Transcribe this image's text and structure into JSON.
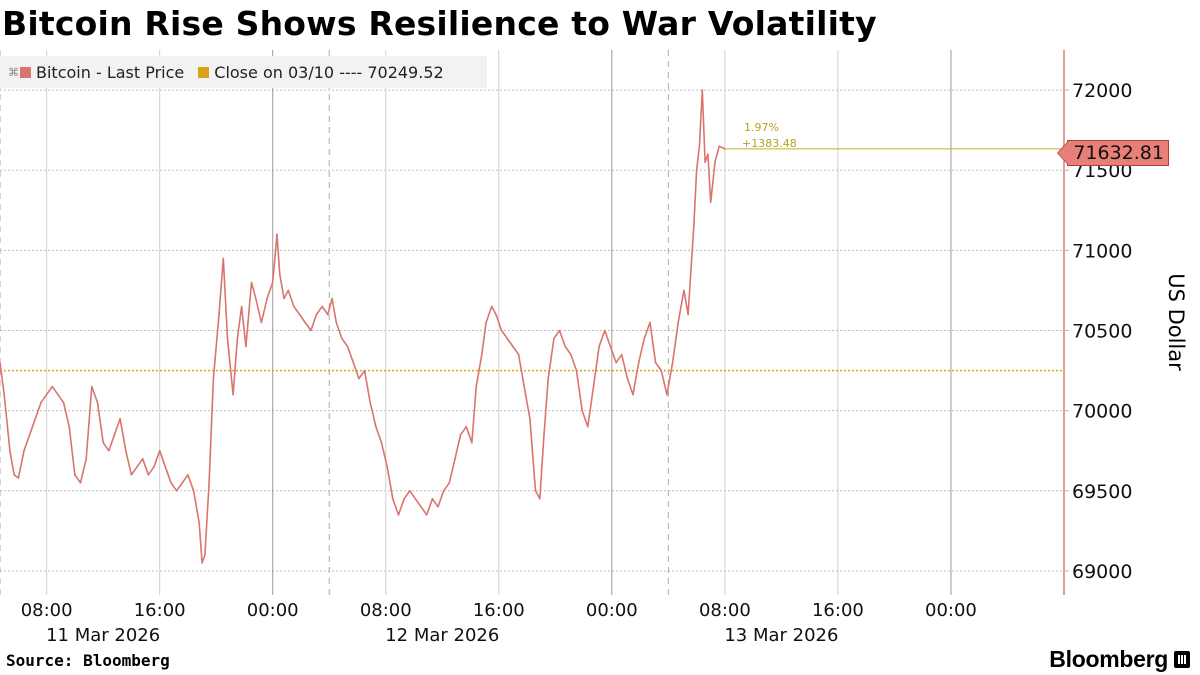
{
  "title": "Bitcoin Rise Shows Resilience to War Volatility",
  "source": "Source: Bloomberg",
  "brand": "Bloomberg",
  "colors": {
    "series": "#d9756d",
    "close_line": "#d9a21b",
    "grid": "#bdbdbd",
    "tag_fill": "#e8807a"
  },
  "legend": [
    {
      "label": "Bitcoin - Last Price",
      "color": "#d9756d"
    },
    {
      "label": "Close on 03/10 ---- 70249.52",
      "color": "#d9a21b"
    }
  ],
  "last_price_tag": "71632.81",
  "annotation": {
    "pct": "1.97%",
    "abs": "+1383.48"
  },
  "chart_data": {
    "type": "line",
    "ylabel": "US Dollar",
    "ylim": [
      68850,
      72250
    ],
    "y_ticks": [
      69000,
      69500,
      70000,
      70500,
      71000,
      71500,
      72000
    ],
    "y_tick_labels": [
      "69000",
      "69500",
      "70000",
      "70500",
      "71000",
      "71500",
      "72000"
    ],
    "x_ticks": [
      {
        "hour": 8,
        "label": "08:00"
      },
      {
        "hour": 16,
        "label": "16:00"
      },
      {
        "hour": 24,
        "label": "00:00"
      },
      {
        "hour": 32,
        "label": "08:00"
      },
      {
        "hour": 40,
        "label": "16:00"
      },
      {
        "hour": 48,
        "label": "00:00"
      },
      {
        "hour": 56,
        "label": "08:00"
      },
      {
        "hour": 64,
        "label": "16:00"
      },
      {
        "hour": 72,
        "label": "00:00"
      }
    ],
    "date_labels": [
      {
        "hour": 12,
        "label": "11 Mar 2026"
      },
      {
        "hour": 36,
        "label": "12 Mar 2026"
      },
      {
        "hour": 60,
        "label": "13 Mar 2026"
      }
    ],
    "xlim_hours": [
      4.7,
      80
    ],
    "close_reference": {
      "label": "Close on 03/10",
      "value": 70249.52
    },
    "last_price": 71632.81,
    "change_pct": 1.97,
    "change_abs": 1383.48,
    "series": [
      {
        "name": "Bitcoin - Last Price",
        "points": [
          [
            4.7,
            70300
          ],
          [
            5.0,
            70100
          ],
          [
            5.4,
            69750
          ],
          [
            5.7,
            69600
          ],
          [
            6.0,
            69580
          ],
          [
            6.4,
            69750
          ],
          [
            6.8,
            69850
          ],
          [
            7.2,
            69950
          ],
          [
            7.6,
            70050
          ],
          [
            8.0,
            70100
          ],
          [
            8.4,
            70150
          ],
          [
            8.8,
            70100
          ],
          [
            9.2,
            70050
          ],
          [
            9.6,
            69900
          ],
          [
            10.0,
            69600
          ],
          [
            10.4,
            69550
          ],
          [
            10.8,
            69700
          ],
          [
            11.2,
            70150
          ],
          [
            11.6,
            70050
          ],
          [
            12.0,
            69800
          ],
          [
            12.4,
            69750
          ],
          [
            12.8,
            69850
          ],
          [
            13.2,
            69950
          ],
          [
            13.6,
            69750
          ],
          [
            14.0,
            69600
          ],
          [
            14.4,
            69650
          ],
          [
            14.8,
            69700
          ],
          [
            15.2,
            69600
          ],
          [
            15.6,
            69650
          ],
          [
            16.0,
            69750
          ],
          [
            16.4,
            69650
          ],
          [
            16.8,
            69550
          ],
          [
            17.2,
            69500
          ],
          [
            17.6,
            69550
          ],
          [
            18.0,
            69600
          ],
          [
            18.4,
            69500
          ],
          [
            18.8,
            69300
          ],
          [
            19.0,
            69050
          ],
          [
            19.2,
            69100
          ],
          [
            19.5,
            69550
          ],
          [
            19.8,
            70200
          ],
          [
            20.2,
            70600
          ],
          [
            20.5,
            70950
          ],
          [
            20.8,
            70450
          ],
          [
            21.2,
            70100
          ],
          [
            21.5,
            70450
          ],
          [
            21.8,
            70650
          ],
          [
            22.1,
            70400
          ],
          [
            22.5,
            70800
          ],
          [
            22.8,
            70700
          ],
          [
            23.2,
            70550
          ],
          [
            23.6,
            70700
          ],
          [
            24.0,
            70800
          ],
          [
            24.3,
            71100
          ],
          [
            24.5,
            70850
          ],
          [
            24.8,
            70700
          ],
          [
            25.1,
            70750
          ],
          [
            25.5,
            70650
          ],
          [
            25.9,
            70600
          ],
          [
            26.3,
            70550
          ],
          [
            26.7,
            70500
          ],
          [
            27.1,
            70600
          ],
          [
            27.5,
            70650
          ],
          [
            27.9,
            70600
          ],
          [
            28.2,
            70700
          ],
          [
            28.5,
            70550
          ],
          [
            28.9,
            70450
          ],
          [
            29.3,
            70400
          ],
          [
            29.7,
            70300
          ],
          [
            30.1,
            70200
          ],
          [
            30.5,
            70250
          ],
          [
            30.9,
            70050
          ],
          [
            31.3,
            69900
          ],
          [
            31.7,
            69800
          ],
          [
            32.1,
            69650
          ],
          [
            32.5,
            69450
          ],
          [
            32.9,
            69350
          ],
          [
            33.3,
            69450
          ],
          [
            33.7,
            69500
          ],
          [
            34.1,
            69450
          ],
          [
            34.5,
            69400
          ],
          [
            34.9,
            69350
          ],
          [
            35.3,
            69450
          ],
          [
            35.7,
            69400
          ],
          [
            36.1,
            69500
          ],
          [
            36.5,
            69550
          ],
          [
            36.9,
            69700
          ],
          [
            37.3,
            69850
          ],
          [
            37.7,
            69900
          ],
          [
            38.1,
            69800
          ],
          [
            38.4,
            70150
          ],
          [
            38.8,
            70350
          ],
          [
            39.1,
            70550
          ],
          [
            39.5,
            70650
          ],
          [
            39.8,
            70600
          ],
          [
            40.2,
            70500
          ],
          [
            40.6,
            70450
          ],
          [
            41.0,
            70400
          ],
          [
            41.4,
            70350
          ],
          [
            41.8,
            70150
          ],
          [
            42.2,
            69950
          ],
          [
            42.6,
            69500
          ],
          [
            42.9,
            69450
          ],
          [
            43.2,
            69850
          ],
          [
            43.5,
            70200
          ],
          [
            43.9,
            70450
          ],
          [
            44.3,
            70500
          ],
          [
            44.7,
            70400
          ],
          [
            45.1,
            70350
          ],
          [
            45.5,
            70250
          ],
          [
            45.9,
            70000
          ],
          [
            46.3,
            69900
          ],
          [
            46.7,
            70150
          ],
          [
            47.1,
            70400
          ],
          [
            47.5,
            70500
          ],
          [
            47.9,
            70400
          ],
          [
            48.3,
            70300
          ],
          [
            48.7,
            70350
          ],
          [
            49.1,
            70200
          ],
          [
            49.5,
            70100
          ],
          [
            49.9,
            70300
          ],
          [
            50.3,
            70450
          ],
          [
            50.7,
            70550
          ],
          [
            51.1,
            70300
          ],
          [
            51.5,
            70250
          ],
          [
            51.9,
            70100
          ],
          [
            52.3,
            70300
          ],
          [
            52.7,
            70550
          ],
          [
            53.1,
            70750
          ],
          [
            53.4,
            70600
          ],
          [
            53.8,
            71150
          ],
          [
            54.0,
            71500
          ],
          [
            54.2,
            71650
          ],
          [
            54.4,
            72000
          ],
          [
            54.6,
            71550
          ],
          [
            54.8,
            71600
          ],
          [
            55.0,
            71300
          ],
          [
            55.3,
            71550
          ],
          [
            55.6,
            71650
          ],
          [
            56.0,
            71632.81
          ]
        ]
      }
    ]
  }
}
